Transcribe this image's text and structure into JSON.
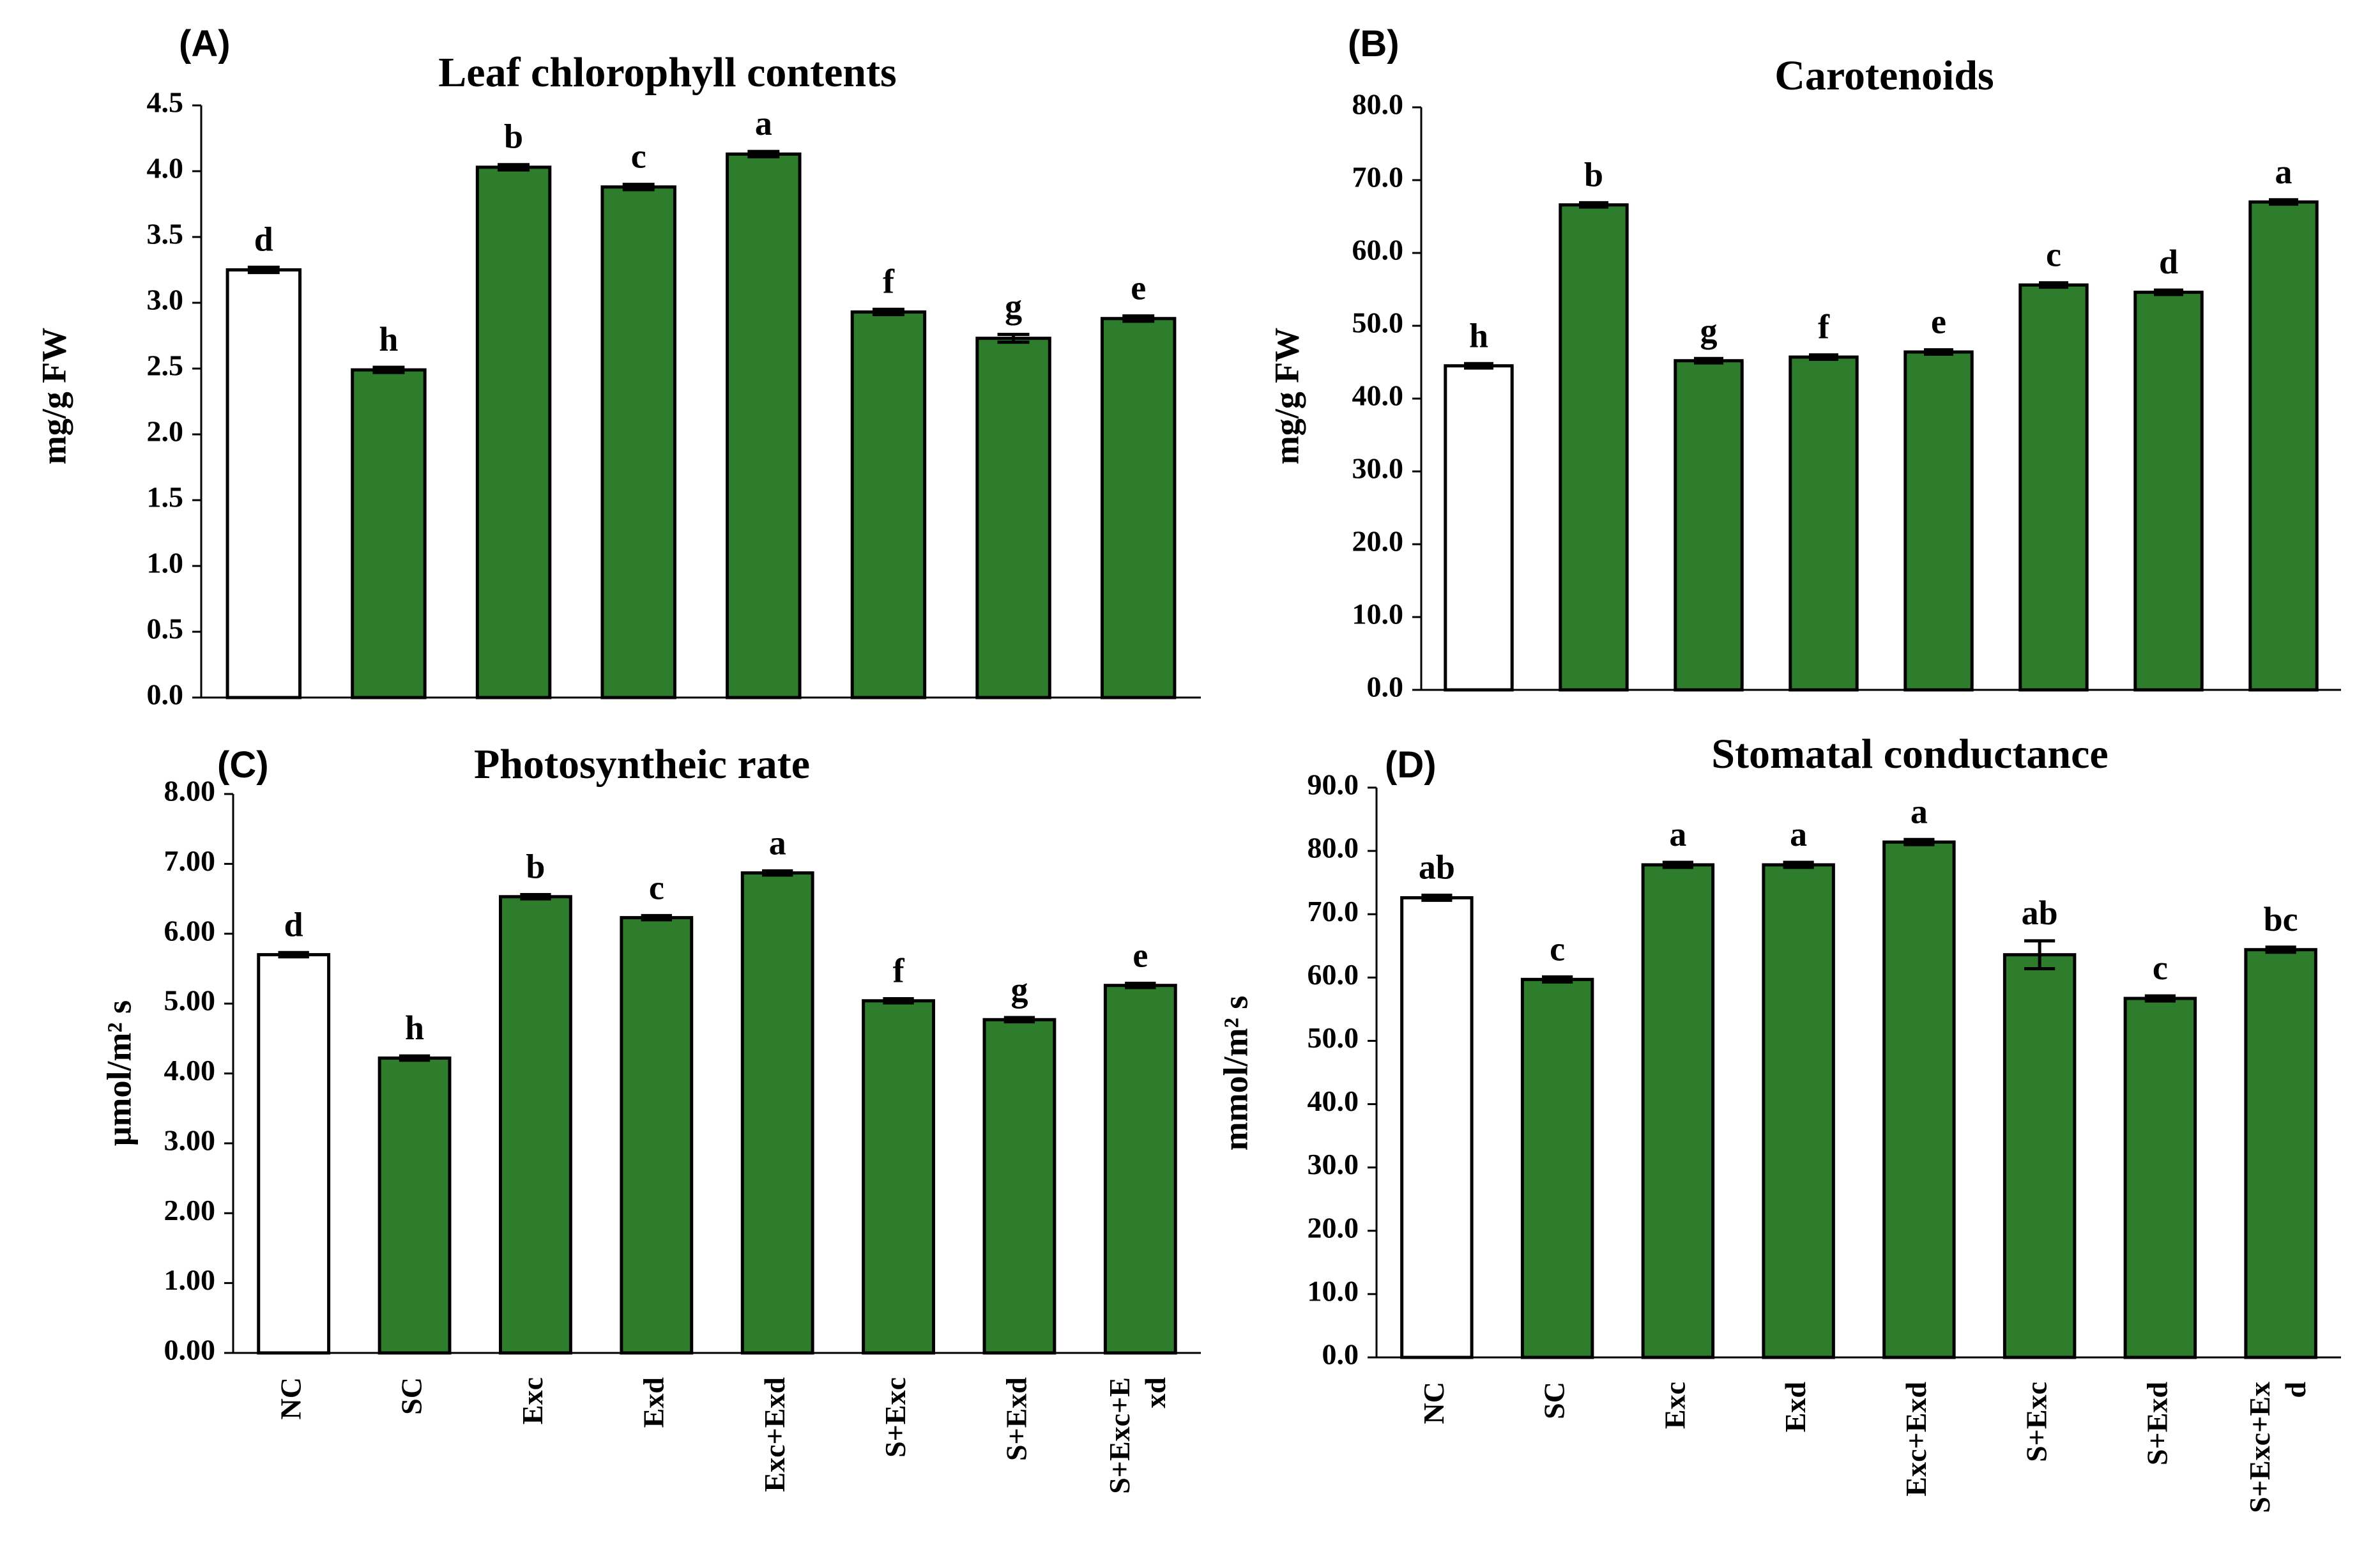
{
  "colors": {
    "treated_bar": "#2e7d2c",
    "control_bar": "#ffffff",
    "outline": "#000000"
  },
  "chart_data": [
    {
      "type": "bar",
      "panel": "(A)",
      "title": "Leaf chlorophyll contents",
      "ylabel": "mg/g FW",
      "xlabel": "",
      "ylim": [
        0,
        4.5
      ],
      "yticks": [
        "0.0",
        "0.5",
        "1.0",
        "1.5",
        "2.0",
        "2.5",
        "3.0",
        "3.5",
        "4.0",
        "4.5"
      ],
      "categories": [
        "NC",
        "SC",
        "Exc",
        "Exd",
        "Exc+Exd",
        "S+Exc",
        "S+Exd",
        "S+Exc+Exd"
      ],
      "values": [
        3.25,
        2.49,
        4.03,
        3.88,
        4.13,
        2.93,
        2.73,
        2.88
      ],
      "errors": [
        0.02,
        0.02,
        0.02,
        0.02,
        0.02,
        0.02,
        0.03,
        0.02
      ],
      "sig_letters": [
        "d",
        "h",
        "b",
        "c",
        "a",
        "f",
        "g",
        "e"
      ],
      "show_categories": false
    },
    {
      "type": "bar",
      "panel": "(B)",
      "title": "Carotenoids",
      "ylabel": "mg/g FW",
      "xlabel": "",
      "ylim": [
        0,
        80
      ],
      "yticks": [
        "0.0",
        "10.0",
        "20.0",
        "30.0",
        "40.0",
        "50.0",
        "60.0",
        "70.0",
        "80.0"
      ],
      "categories": [
        "NC",
        "SC",
        "Exc",
        "Exd",
        "Exc+Exd",
        "S+Exc",
        "S+Exd",
        "S+Exc+Exd"
      ],
      "values": [
        44.5,
        66.6,
        45.2,
        45.7,
        46.4,
        55.6,
        54.6,
        67.0
      ],
      "errors": [
        0.3,
        0.3,
        0.3,
        0.3,
        0.3,
        0.3,
        0.3,
        0.3
      ],
      "sig_letters": [
        "h",
        "b",
        "g",
        "f",
        "e",
        "c",
        "d",
        "a"
      ],
      "show_categories": false
    },
    {
      "type": "bar",
      "panel": "(C)",
      "title": "Photosyntheic rate",
      "ylabel": "μmol/m² s",
      "xlabel": "",
      "ylim": [
        0,
        8
      ],
      "yticks": [
        "0.00",
        "1.00",
        "2.00",
        "3.00",
        "4.00",
        "5.00",
        "6.00",
        "7.00",
        "8.00"
      ],
      "categories": [
        "NC",
        "SC",
        "Exc",
        "Exd",
        "Exc+Exd",
        "S+Exc",
        "S+Exd",
        "S+Exc+Exd"
      ],
      "category_lines": [
        [
          "NC"
        ],
        [
          "SC"
        ],
        [
          "Exc"
        ],
        [
          "Exd"
        ],
        [
          "Exc+Exd"
        ],
        [
          "S+Exc"
        ],
        [
          "S+Exd"
        ],
        [
          "S+Exc+E",
          "xd"
        ]
      ],
      "values": [
        5.7,
        4.22,
        6.53,
        6.23,
        6.87,
        5.04,
        4.77,
        5.26
      ],
      "errors": [
        0.03,
        0.03,
        0.03,
        0.03,
        0.03,
        0.03,
        0.03,
        0.03
      ],
      "sig_letters": [
        "d",
        "h",
        "b",
        "c",
        "a",
        "f",
        "g",
        "e"
      ],
      "show_categories": true
    },
    {
      "type": "bar",
      "panel": "(D)",
      "title": "Stomatal conductance",
      "ylabel": "mmol/m² s",
      "xlabel": "",
      "ylim": [
        0,
        90
      ],
      "yticks": [
        "0.0",
        "10.0",
        "20.0",
        "30.0",
        "40.0",
        "50.0",
        "60.0",
        "70.0",
        "80.0",
        "90.0"
      ],
      "categories": [
        "NC",
        "SC",
        "Exc",
        "Exd",
        "Exc+Exd",
        "S+Exc",
        "S+Exd",
        "S+Exc+Exd"
      ],
      "category_lines": [
        [
          "NC"
        ],
        [
          "SC"
        ],
        [
          "Exc"
        ],
        [
          "Exd"
        ],
        [
          "Exc+Exd"
        ],
        [
          "S+Exc"
        ],
        [
          "S+Exd"
        ],
        [
          "S+Exc+Ex",
          "d"
        ]
      ],
      "values": [
        72.6,
        59.7,
        77.8,
        77.8,
        81.4,
        63.6,
        56.7,
        64.4
      ],
      "errors": [
        0.4,
        0.4,
        0.4,
        0.4,
        0.4,
        2.2,
        0.4,
        0.4
      ],
      "sig_letters": [
        "ab",
        "c",
        "a",
        "a",
        "a",
        "ab",
        "c",
        "bc"
      ],
      "show_categories": true
    }
  ]
}
